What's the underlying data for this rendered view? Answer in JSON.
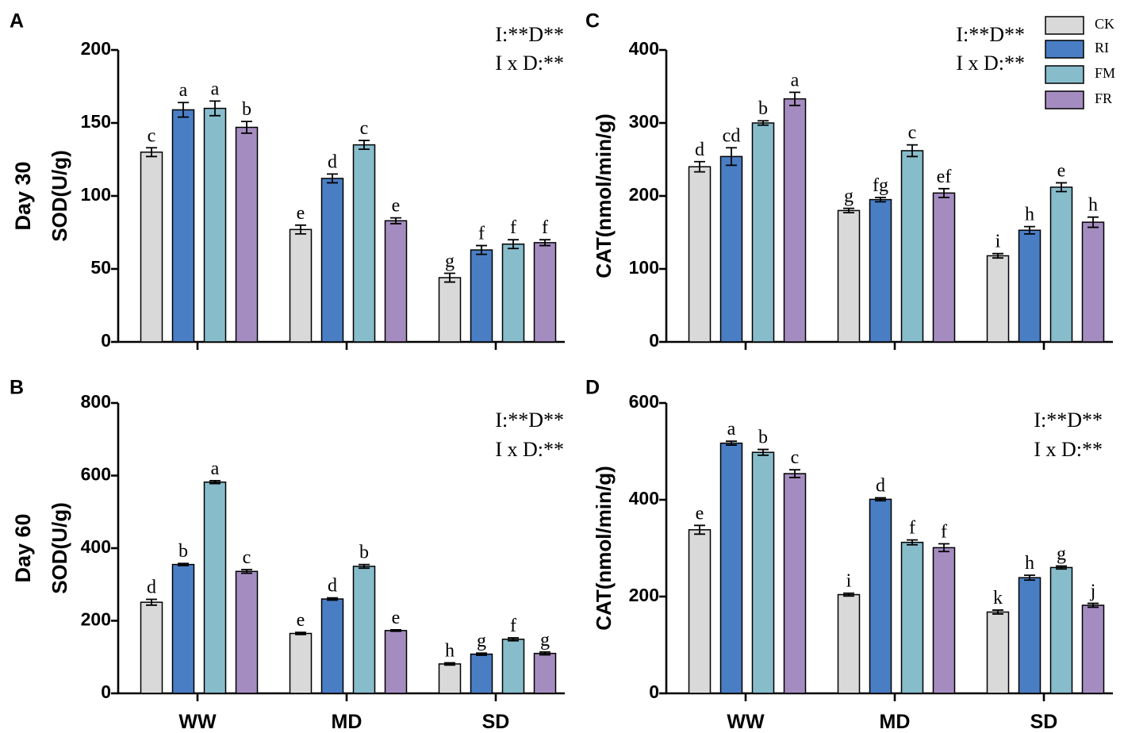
{
  "legend": {
    "items": [
      {
        "name": "CK",
        "color": "#d9d9d9"
      },
      {
        "name": "RI",
        "color": "#4a7ec4"
      },
      {
        "name": "FM",
        "color": "#87bccb"
      },
      {
        "name": "FR",
        "color": "#a58cc0"
      }
    ]
  },
  "chart_data": [
    {
      "type": "bar",
      "panel": "A",
      "row_label": "Day 30",
      "ylabel": "SOD(U/g)",
      "xlabel": "",
      "ylim": [
        0,
        200
      ],
      "yticks": [
        0,
        50,
        100,
        150,
        200
      ],
      "categories": [
        "WW",
        "MD",
        "SD"
      ],
      "annotations": [
        "I:**D**",
        "I x D:**"
      ],
      "series": [
        {
          "name": "CK",
          "values": [
            130,
            77,
            44
          ],
          "errors": [
            3,
            3,
            3
          ],
          "letters": [
            "c",
            "e",
            "g"
          ]
        },
        {
          "name": "RI",
          "values": [
            159,
            112,
            63
          ],
          "errors": [
            5,
            3,
            3
          ],
          "letters": [
            "a",
            "d",
            "f"
          ]
        },
        {
          "name": "FM",
          "values": [
            160,
            135,
            67
          ],
          "errors": [
            5,
            3,
            3
          ],
          "letters": [
            "a",
            "c",
            "f"
          ]
        },
        {
          "name": "FR",
          "values": [
            147,
            83,
            68
          ],
          "errors": [
            4,
            2,
            2
          ],
          "letters": [
            "b",
            "e",
            "f"
          ]
        }
      ]
    },
    {
      "type": "bar",
      "panel": "C",
      "row_label": "",
      "ylabel": "CAT(nmol/min/g)",
      "xlabel": "",
      "ylim": [
        0,
        400
      ],
      "yticks": [
        0,
        100,
        200,
        300,
        400
      ],
      "categories": [
        "WW",
        "MD",
        "SD"
      ],
      "annotations": [
        "I:**D**",
        "I x D:**"
      ],
      "series": [
        {
          "name": "CK",
          "values": [
            240,
            180,
            118
          ],
          "errors": [
            7,
            3,
            3
          ],
          "letters": [
            "d",
            "g",
            "i"
          ]
        },
        {
          "name": "RI",
          "values": [
            254,
            195,
            153
          ],
          "errors": [
            12,
            3,
            5
          ],
          "letters": [
            "cd",
            "fg",
            "h"
          ]
        },
        {
          "name": "FM",
          "values": [
            300,
            262,
            212
          ],
          "errors": [
            3,
            8,
            6
          ],
          "letters": [
            "b",
            "c",
            "e"
          ]
        },
        {
          "name": "FR",
          "values": [
            333,
            204,
            164
          ],
          "errors": [
            9,
            6,
            7
          ],
          "letters": [
            "a",
            "ef",
            "h"
          ]
        }
      ]
    },
    {
      "type": "bar",
      "panel": "B",
      "row_label": "Day 60",
      "ylabel": "SOD(U/g)",
      "xlabel": "",
      "ylim": [
        0,
        800
      ],
      "yticks": [
        0,
        200,
        400,
        600,
        800
      ],
      "categories": [
        "WW",
        "MD",
        "SD"
      ],
      "annotations": [
        "I:**D**",
        "I x D:**"
      ],
      "series": [
        {
          "name": "CK",
          "values": [
            251,
            165,
            81
          ],
          "errors": [
            8,
            3,
            3
          ],
          "letters": [
            "d",
            "e",
            "h"
          ]
        },
        {
          "name": "RI",
          "values": [
            355,
            260,
            108
          ],
          "errors": [
            3,
            3,
            3
          ],
          "letters": [
            "b",
            "d",
            "g"
          ]
        },
        {
          "name": "FM",
          "values": [
            582,
            350,
            149
          ],
          "errors": [
            4,
            5,
            4
          ],
          "letters": [
            "a",
            "b",
            "f"
          ]
        },
        {
          "name": "FR",
          "values": [
            336,
            173,
            110
          ],
          "errors": [
            5,
            2,
            4
          ],
          "letters": [
            "c",
            "e",
            "g"
          ]
        }
      ]
    },
    {
      "type": "bar",
      "panel": "D",
      "row_label": "",
      "ylabel": "CAT(nmol/min/g)",
      "xlabel": "",
      "ylim": [
        0,
        600
      ],
      "yticks": [
        0,
        200,
        400,
        600
      ],
      "categories": [
        "WW",
        "MD",
        "SD"
      ],
      "annotations": [
        "I:**D**",
        "I x D:**"
      ],
      "series": [
        {
          "name": "CK",
          "values": [
            338,
            204,
            168
          ],
          "errors": [
            9,
            3,
            4
          ],
          "letters": [
            "e",
            "i",
            "k"
          ]
        },
        {
          "name": "RI",
          "values": [
            517,
            401,
            239
          ],
          "errors": [
            4,
            3,
            5
          ],
          "letters": [
            "a",
            "d",
            "h"
          ]
        },
        {
          "name": "FM",
          "values": [
            498,
            312,
            260
          ],
          "errors": [
            6,
            5,
            3
          ],
          "letters": [
            "b",
            "f",
            "g"
          ]
        },
        {
          "name": "FR",
          "values": [
            454,
            301,
            182
          ],
          "errors": [
            8,
            8,
            4
          ],
          "letters": [
            "c",
            "f",
            "j"
          ]
        }
      ]
    }
  ]
}
